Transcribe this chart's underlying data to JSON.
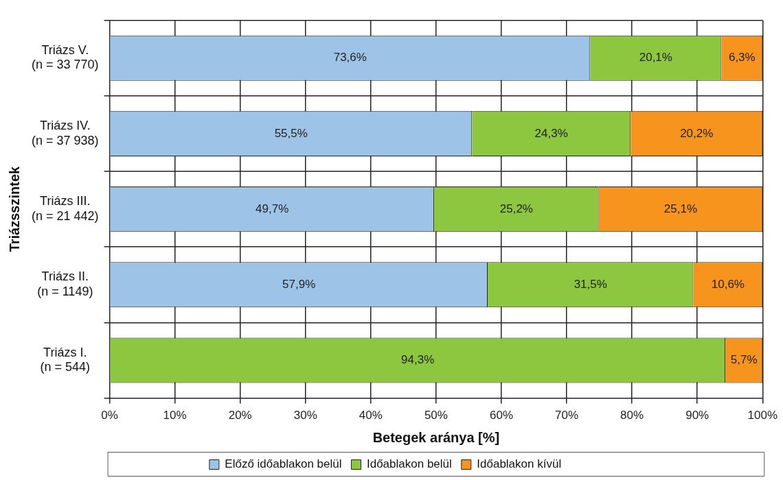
{
  "chart_data": {
    "type": "bar",
    "orientation": "horizontal",
    "stacked": true,
    "categories": [
      "Triázs V.\n(n = 33 770)",
      "Triázs IV.\n(n = 37 938)",
      "Triázs III.\n(n = 21 442)",
      "Triázs II.\n(n = 1149)",
      "Triázs I.\n(n = 544)"
    ],
    "series": [
      {
        "name": "Előző időablakon belül",
        "color": "#9dc3e6",
        "values": [
          73.6,
          55.5,
          49.7,
          57.9,
          null
        ],
        "value_labels": [
          "73,6%",
          "55,5%",
          "49,7%",
          "57,9%",
          null
        ]
      },
      {
        "name": "Időablakon belül",
        "color": "#8dc63f",
        "values": [
          20.1,
          24.3,
          25.2,
          31.5,
          94.3
        ],
        "value_labels": [
          "20,1%",
          "24,3%",
          "25,2%",
          "31,5%",
          "94,3%"
        ]
      },
      {
        "name": "Időablakon kívül",
        "color": "#f7941d",
        "values": [
          6.3,
          20.2,
          25.1,
          10.6,
          5.7
        ],
        "value_labels": [
          "6,3%",
          "20,2%",
          "25,1%",
          "10,6%",
          "5,7%"
        ]
      }
    ],
    "xlabel": "Betegek aránya [%]",
    "ylabel": "Triázsszintek",
    "xlim": [
      0,
      100
    ],
    "xticks": [
      {
        "value": 0,
        "label": "0%"
      },
      {
        "value": 10,
        "label": "10%"
      },
      {
        "value": 20,
        "label": "20%"
      },
      {
        "value": 30,
        "label": "30%"
      },
      {
        "value": 40,
        "label": "40%"
      },
      {
        "value": 50,
        "label": "50%"
      },
      {
        "value": 60,
        "label": "60%"
      },
      {
        "value": 70,
        "label": "70%"
      },
      {
        "value": 80,
        "label": "80%"
      },
      {
        "value": 90,
        "label": "90%"
      },
      {
        "value": 100,
        "label": "100%"
      }
    ],
    "grid": true,
    "legend": "bottom"
  }
}
